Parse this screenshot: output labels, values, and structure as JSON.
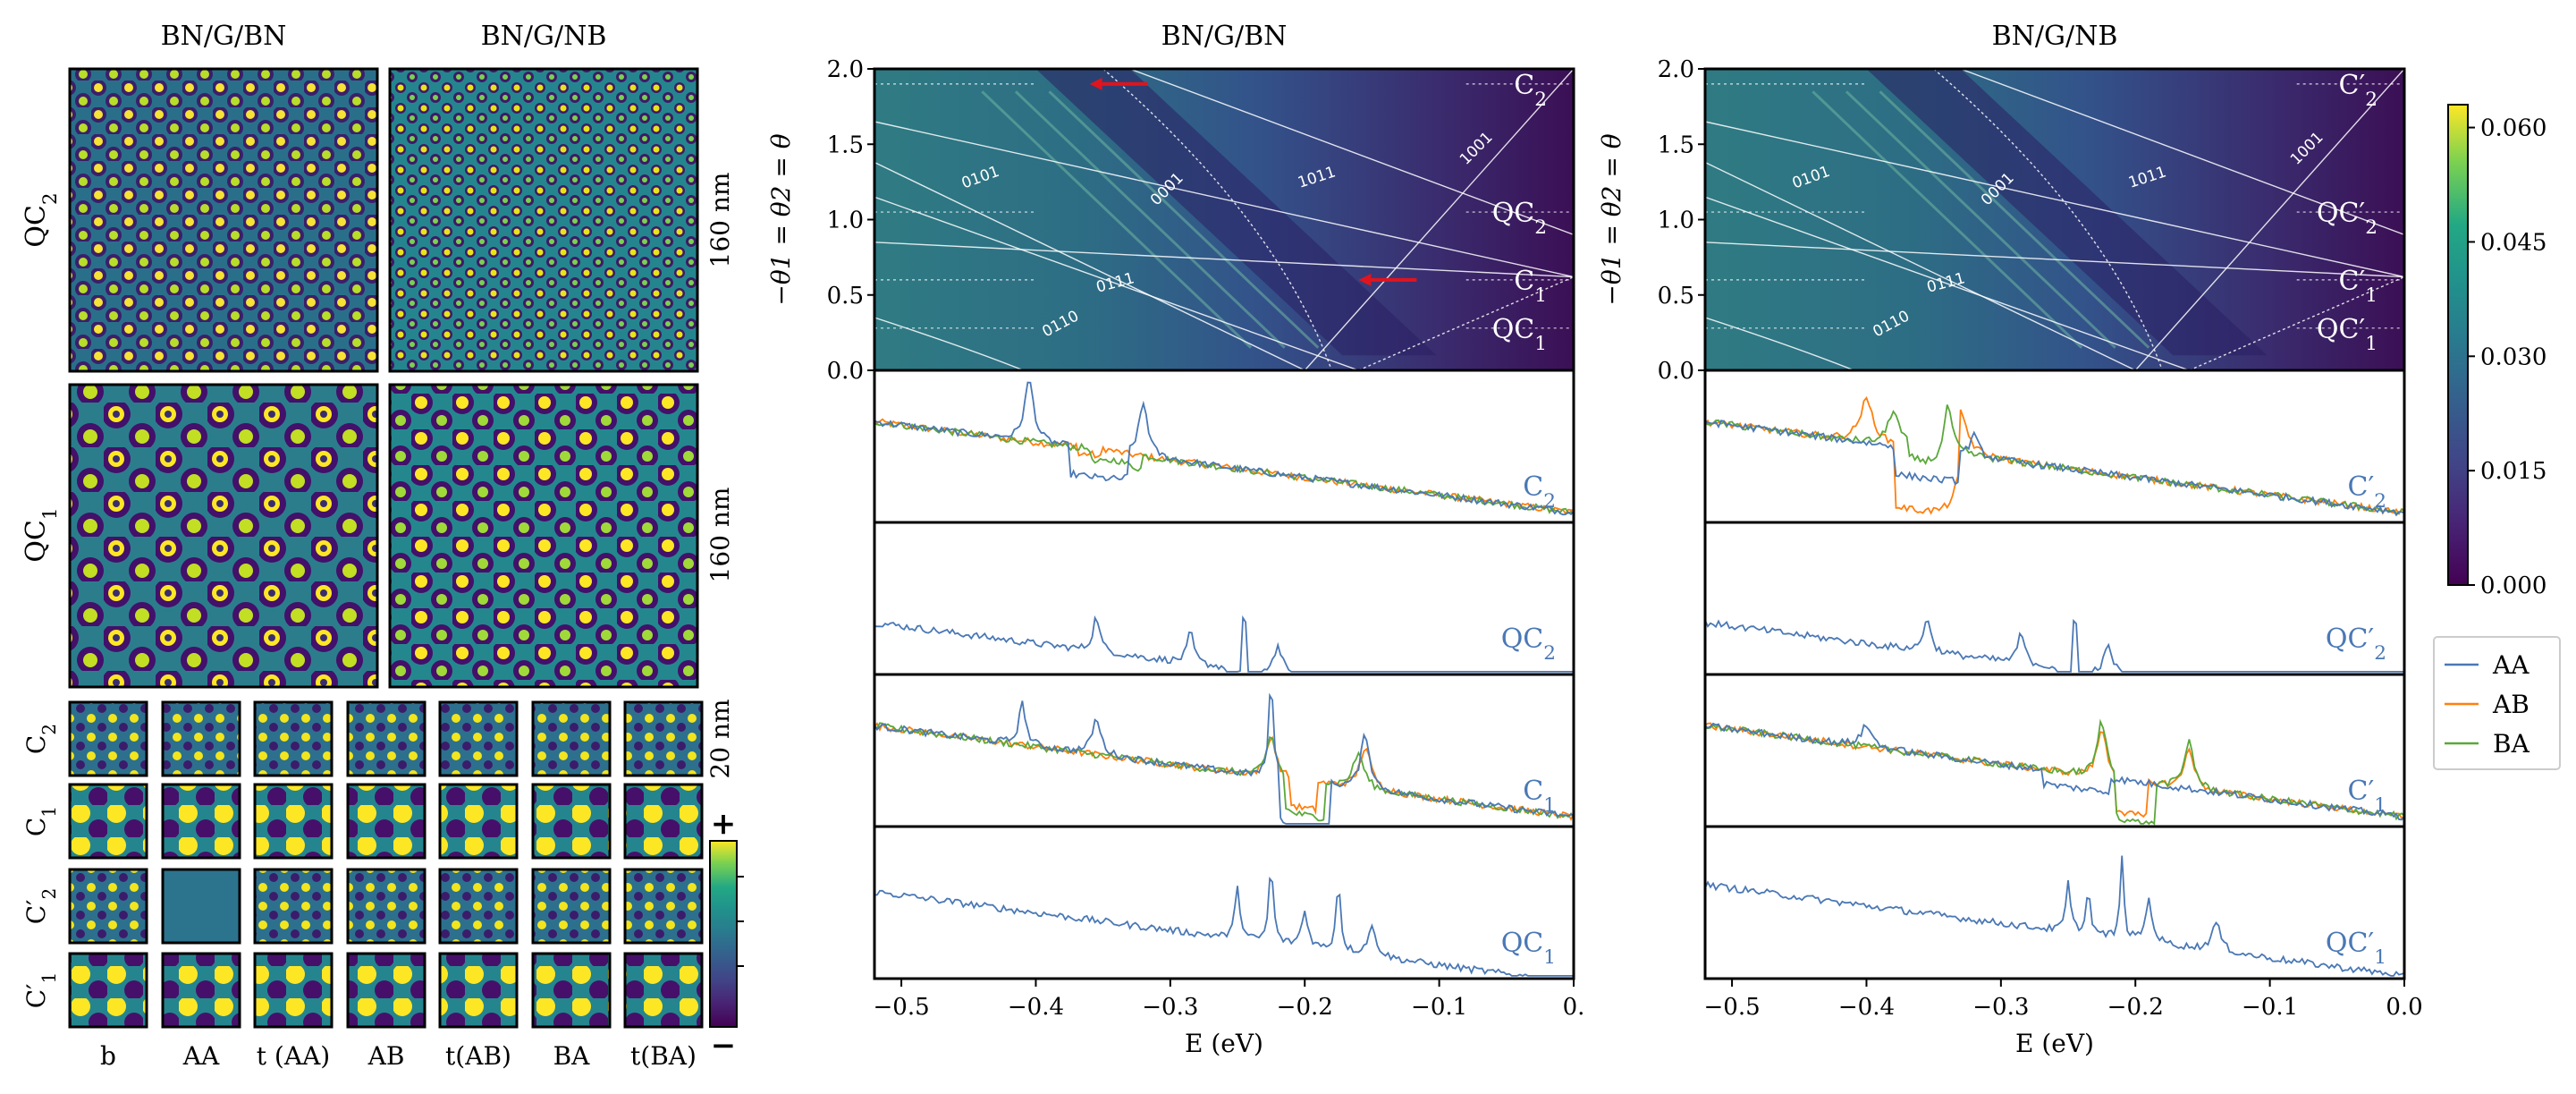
{
  "colors": {
    "AA": "#4a78b5",
    "AB": "#ff7f0e",
    "BA": "#5aa83a",
    "label": "#4a78b5",
    "arrow": "#e0141e"
  },
  "left": {
    "col_titles": [
      "BN/G/BN",
      "BN/G/NB"
    ],
    "row_labels": [
      "QC2",
      "QC1"
    ],
    "scale_labels": [
      "160 nm",
      "160 nm",
      "20 nm"
    ],
    "small_row_labels": [
      "C2",
      "C1",
      "C′2",
      "C′1"
    ],
    "small_col_labels": [
      "b",
      "AA",
      "t (AA)",
      "AB",
      "t(AB)",
      "BA",
      "t(BA)"
    ],
    "mini_colorbar": {
      "top": "+",
      "bottom": "−"
    }
  },
  "colorbar": {
    "ticks": [
      "0.000",
      "0.015",
      "0.030",
      "0.045",
      "0.060"
    ],
    "min": 0,
    "max": 0.063
  },
  "legend": [
    "AA",
    "AB",
    "BA"
  ],
  "chart_data": [
    {
      "type": "heatmap",
      "title": "BN/G/BN",
      "xlabel": "E (eV)",
      "ylabel": "−θ1 = θ2 = θ",
      "xlim": [
        -0.52,
        0.0
      ],
      "ylim": [
        0.0,
        2.0
      ],
      "yticks": [
        "0.0",
        "0.5",
        "1.0",
        "1.5",
        "2.0"
      ],
      "labels": [
        "C2",
        "QC2",
        "C1",
        "QC1"
      ],
      "label_levels": [
        1.9,
        1.05,
        0.6,
        0.28
      ],
      "line_labels": [
        "0101",
        "0001",
        "1011",
        "1001",
        "0111",
        "0110"
      ],
      "xticks": [
        "−0.5",
        "−0.4",
        "−0.3",
        "−0.2",
        "−0.1",
        "0."
      ],
      "xtick_values": [
        -0.5,
        -0.4,
        -0.3,
        -0.2,
        -0.1,
        0.0
      ],
      "arrows": [
        {
          "E": -0.36,
          "theta": 1.9
        },
        {
          "E": -0.16,
          "theta": 0.6
        }
      ],
      "spectra": [
        {
          "label": "C2",
          "series": [
            "AA",
            "AB",
            "BA"
          ]
        },
        {
          "label": "QC2",
          "series": [
            "AA"
          ]
        },
        {
          "label": "C1",
          "series": [
            "AA",
            "AB",
            "BA"
          ]
        },
        {
          "label": "QC1",
          "series": [
            "AA"
          ]
        }
      ]
    },
    {
      "type": "heatmap",
      "title": "BN/G/NB",
      "xlabel": "E (eV)",
      "ylabel": "−θ1 = θ2 = θ",
      "xlim": [
        -0.52,
        0.0
      ],
      "ylim": [
        0.0,
        2.0
      ],
      "yticks": [
        "0.0",
        "0.5",
        "1.0",
        "1.5",
        "2.0"
      ],
      "labels": [
        "C′2",
        "QC′2",
        "C′1",
        "QC′1"
      ],
      "label_levels": [
        1.9,
        1.05,
        0.6,
        0.28
      ],
      "line_labels": [
        "0101",
        "0001",
        "1011",
        "1001",
        "0111",
        "0110"
      ],
      "xticks": [
        "−0.5",
        "−0.4",
        "−0.3",
        "−0.2",
        "−0.1",
        "0.0"
      ],
      "xtick_values": [
        -0.5,
        -0.4,
        -0.3,
        -0.2,
        -0.1,
        0.0
      ],
      "arrows": [],
      "spectra": [
        {
          "label": "C′2",
          "series": [
            "AA",
            "AB",
            "BA"
          ]
        },
        {
          "label": "QC′2",
          "series": [
            "AA"
          ]
        },
        {
          "label": "C′1",
          "series": [
            "AA",
            "AB",
            "BA"
          ]
        },
        {
          "label": "QC′1",
          "series": [
            "AA"
          ]
        }
      ]
    }
  ]
}
